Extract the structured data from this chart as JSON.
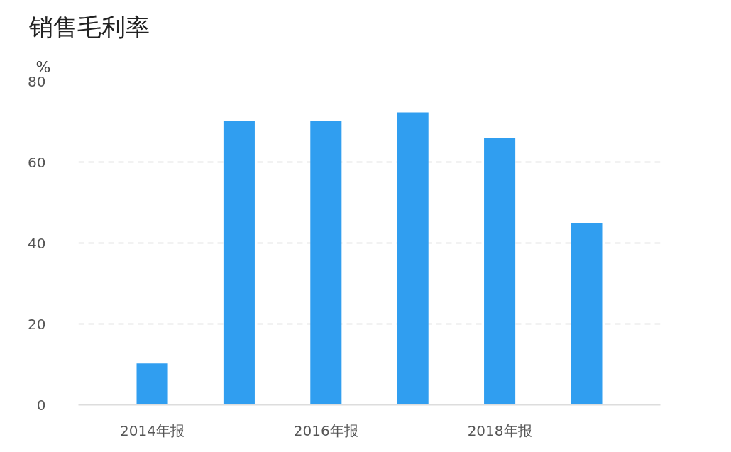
{
  "chart_data": {
    "type": "bar",
    "title": "销售毛利率",
    "ylabel": "%",
    "categories": [
      "2014年报",
      null,
      "2016年报",
      null,
      "2018年报",
      null
    ],
    "values": [
      10.2,
      70.2,
      70.2,
      72.3,
      65.9,
      45.0
    ],
    "color": "#309ef0",
    "ylim": [
      0,
      80
    ],
    "yticks": [
      0,
      20,
      40,
      60,
      80
    ],
    "grid": "y"
  }
}
